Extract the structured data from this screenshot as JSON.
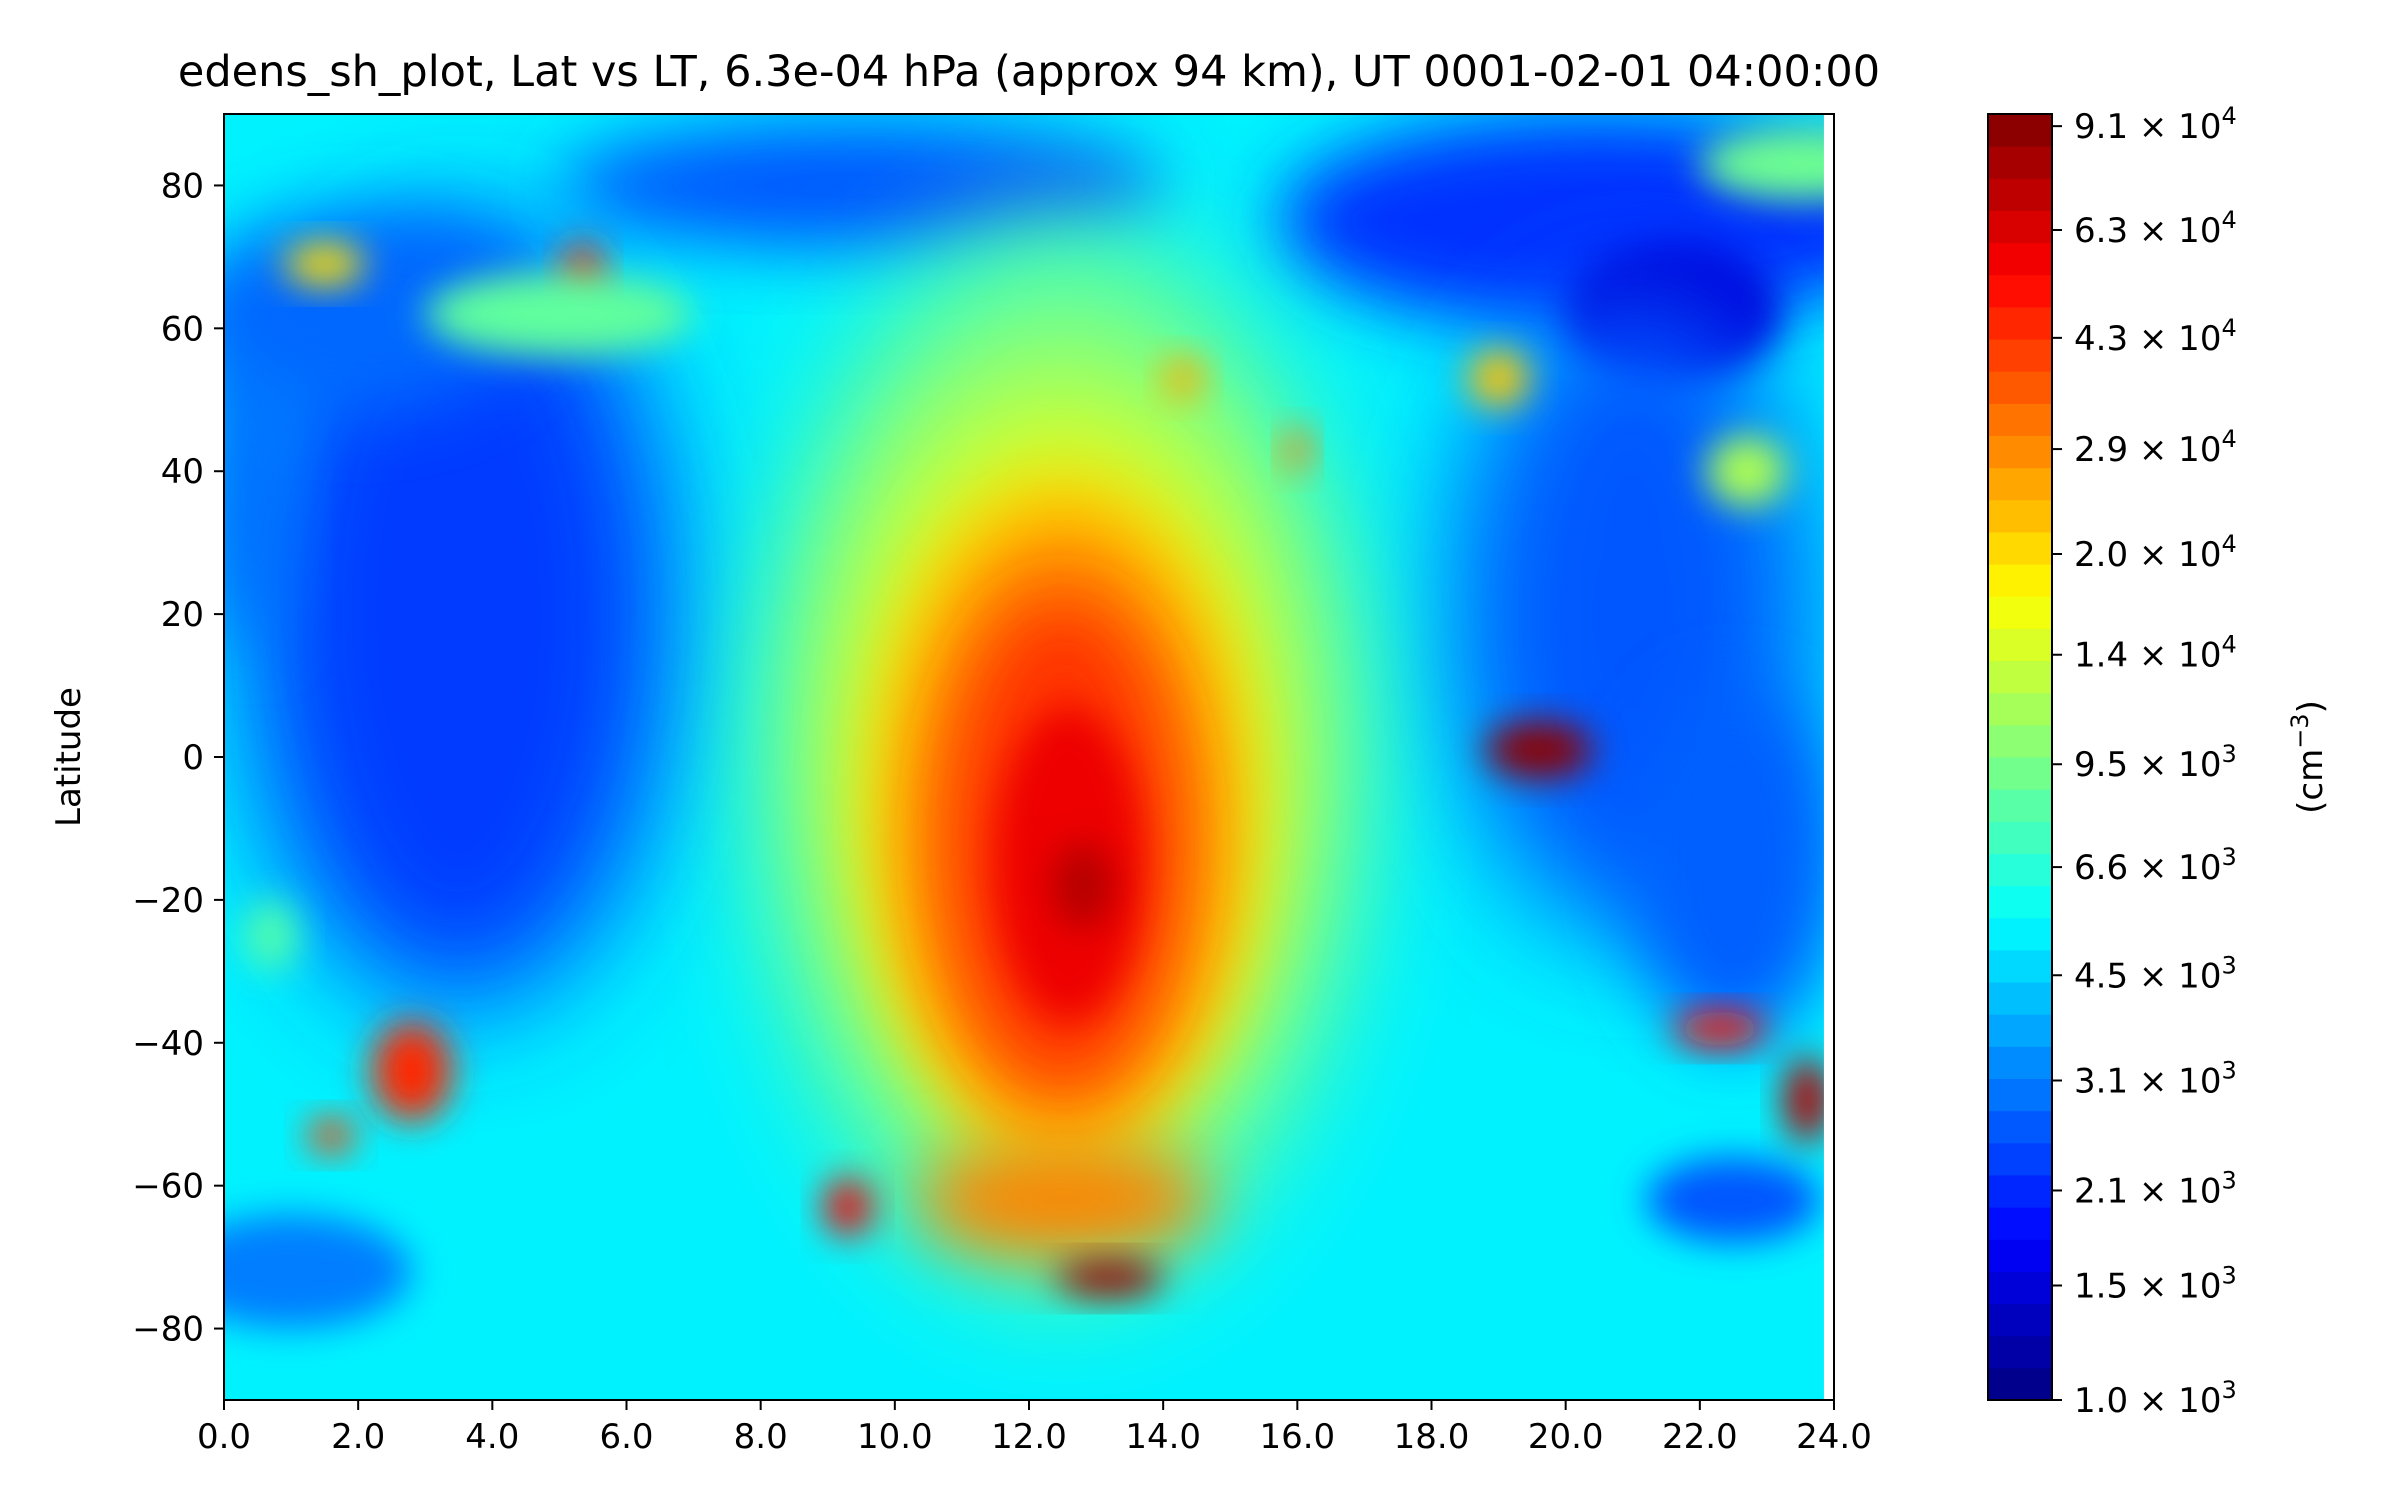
{
  "chart_data": {
    "type": "heatmap",
    "title": "edens_sh_plot, Lat vs LT, 6.3e-04 hPa (approx 94 km), UT 0001-02-01 04:00:00",
    "xlabel": "",
    "ylabel": "Latitude",
    "xlim": [
      0,
      24
    ],
    "ylim": [
      -90,
      90
    ],
    "x_ticks": [
      "0.0",
      "2.0",
      "4.0",
      "6.0",
      "8.0",
      "10.0",
      "12.0",
      "14.0",
      "16.0",
      "18.0",
      "20.0",
      "22.0",
      "24.0"
    ],
    "y_ticks": [
      "80",
      "60",
      "40",
      "20",
      "0",
      "−20",
      "−40",
      "−60",
      "−80"
    ],
    "colorbar": {
      "label": "(cm",
      "label_exponent": "−3",
      "label_close": ")",
      "scale": "log",
      "range": [
        1000,
        95000
      ],
      "tick_labels": [
        {
          "mantissa": "9.1",
          "exponent": "4"
        },
        {
          "mantissa": "6.3",
          "exponent": "4"
        },
        {
          "mantissa": "4.3",
          "exponent": "4"
        },
        {
          "mantissa": "2.9",
          "exponent": "4"
        },
        {
          "mantissa": "2.0",
          "exponent": "4"
        },
        {
          "mantissa": "1.4",
          "exponent": "4"
        },
        {
          "mantissa": "9.5",
          "exponent": "3"
        },
        {
          "mantissa": "6.6",
          "exponent": "3"
        },
        {
          "mantissa": "4.5",
          "exponent": "3"
        },
        {
          "mantissa": "3.1",
          "exponent": "3"
        },
        {
          "mantissa": "2.1",
          "exponent": "3"
        },
        {
          "mantissa": "1.5",
          "exponent": "3"
        },
        {
          "mantissa": "1.0",
          "exponent": "3"
        }
      ],
      "tick_values": [
        91000,
        63000,
        43000,
        29000,
        20000,
        14000,
        9500,
        6600,
        4500,
        3100,
        2100,
        1500,
        1000
      ],
      "colormap": "jet"
    },
    "field_description_points": [
      {
        "lt": 12.6,
        "lat": -18,
        "value": 70000
      },
      {
        "lt": 12.5,
        "lat": 0,
        "value": 50000
      },
      {
        "lt": 12.5,
        "lat": 20,
        "value": 30000
      },
      {
        "lt": 12.5,
        "lat": 35,
        "value": 16000
      },
      {
        "lt": 12.5,
        "lat": -60,
        "value": 35000
      },
      {
        "lt": 13.2,
        "lat": -73,
        "value": 80000
      },
      {
        "lt": 19.6,
        "lat": 1,
        "value": 90000
      },
      {
        "lt": 5.3,
        "lat": 67,
        "value": 40000
      },
      {
        "lt": 2.8,
        "lat": -44,
        "value": 45000
      },
      {
        "lt": 23.7,
        "lat": -48,
        "value": 70000
      },
      {
        "lt": 22.3,
        "lat": -38,
        "value": 50000
      },
      {
        "lt": 9.3,
        "lat": -63,
        "value": 50000
      },
      {
        "lt": 3.0,
        "lat": 20,
        "value": 2000
      },
      {
        "lt": 21.5,
        "lat": 65,
        "value": 1400
      }
    ]
  }
}
